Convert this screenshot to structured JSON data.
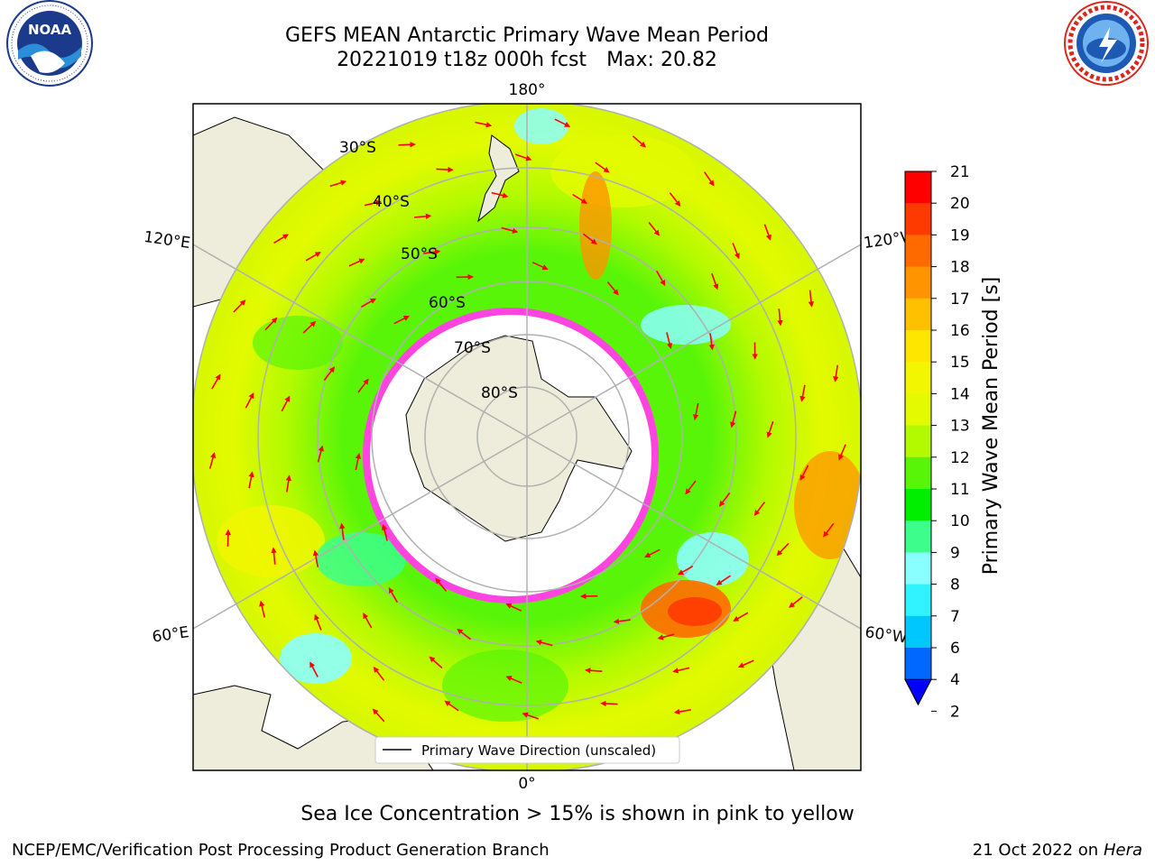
{
  "header": {
    "title_line1": "GEFS MEAN Antarctic Primary Wave Mean Period",
    "title_date": "20221019 t18z 000h fcst",
    "title_max": "Max: 20.82"
  },
  "logos": {
    "left": {
      "name": "NOAA",
      "ring_text": "NATIONAL OCEANIC AND ATMOSPHERIC ADMINISTRATION · U.S. DEPARTMENT OF COMMERCE",
      "colors": {
        "navy": "#1b3a8c",
        "sky": "#2a8fd8"
      }
    },
    "right": {
      "name": "NATIONAL WEATHER SERVICE",
      "colors": {
        "red": "#d9281e",
        "blue": "#1e5ab4"
      }
    }
  },
  "map": {
    "projection": "south-polar-stereographic",
    "longitude_labels": {
      "top": "180°",
      "bottom": "0°",
      "left_upper": "120°E",
      "left_lower": "60°E",
      "right_upper": "120°W",
      "right_lower": "60°W"
    },
    "latitude_labels": [
      "30°S",
      "40°S",
      "50°S",
      "60°S",
      "70°S",
      "80°S"
    ],
    "legend": "Primary Wave Direction (unscaled)",
    "colors": {
      "land": "#eeecda",
      "ice": "#ffffff",
      "arrow": "#ff0000",
      "grid": "#b0b0b0",
      "sea_ice_edge": "#ff44e0"
    }
  },
  "colorbar": {
    "label": "Primary Wave Mean Period [s]",
    "ticks": [
      "2",
      "4",
      "6",
      "7",
      "8",
      "9",
      "10",
      "11",
      "12",
      "13",
      "14",
      "15",
      "16",
      "17",
      "18",
      "19",
      "20",
      "21"
    ],
    "colors": [
      "#0068ff",
      "#00c8ff",
      "#31f2ff",
      "#8affff",
      "#3cfe8c",
      "#00ee00",
      "#58f508",
      "#b3fa00",
      "#e3fa00",
      "#f2f600",
      "#ffe600",
      "#ffc000",
      "#ff9300",
      "#ff6a00",
      "#ff3a00",
      "#ff0000"
    ],
    "extend_color": "#0000ff"
  },
  "caption": "Sea Ice Concentration > 15% is shown in pink to yellow",
  "footer": {
    "left": "NCEP/EMC/Verification Post Processing Product Generation Branch",
    "right_prefix": "21 Oct 2022 on ",
    "right_host": "Hera"
  }
}
